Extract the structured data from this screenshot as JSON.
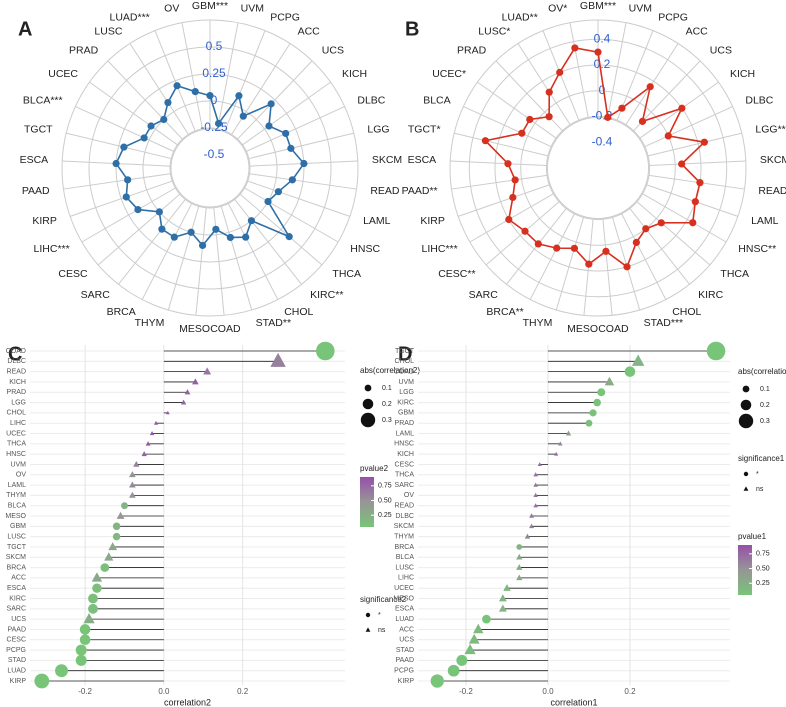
{
  "chart_data": [
    {
      "type": "radar",
      "panel": "A",
      "color": "#2f6fa8",
      "tick_color": "#2f5fcd",
      "categories": [
        "GBM***",
        "UVM",
        "PCPG",
        "ACC",
        "UCS",
        "KICH",
        "DLBC",
        "LGG",
        "SKCM",
        "READ",
        "LAML",
        "HNSC",
        "THCA",
        "KIRC**",
        "CHOL",
        "STAD**",
        "COAD",
        "MESO",
        "THYM",
        "BRCA",
        "SARC",
        "CESC",
        "LIHC***",
        "KIRP",
        "PAAD",
        "ESCA",
        "TGCT",
        "BLCA***",
        "UCEC",
        "PRAD",
        "LUSC",
        "LUAD***",
        "OV"
      ],
      "values": [
        0.05,
        -0.2,
        0.1,
        -0.05,
        0.2,
        0.05,
        0.15,
        0.15,
        0.25,
        0.15,
        0.05,
        0,
        0.35,
        0,
        0.1,
        0.05,
        -0.05,
        0.1,
        0,
        0.1,
        0.1,
        0,
        0.15,
        0.2,
        0.15,
        0.25,
        0.2,
        0.05,
        0.05,
        0,
        0.1,
        0.2,
        0.1
      ],
      "ylim": [
        -0.5,
        0.75
      ],
      "yticks": [
        -0.5,
        -0.25,
        0,
        0.25,
        0.5
      ]
    },
    {
      "type": "radar",
      "panel": "B",
      "color": "#d7301f",
      "tick_color": "#2f5fcd",
      "categories": [
        "GBM***",
        "UVM",
        "PCPG",
        "ACC",
        "UCS",
        "KICH",
        "DLBC",
        "LGG***",
        "SKCM**",
        "READ",
        "LAML",
        "HNSC**",
        "THCA",
        "KIRC",
        "CHOL",
        "STAD***",
        "COAD",
        "MESO",
        "THYM",
        "BRCA**",
        "SARC",
        "CESC**",
        "LIHC***",
        "KIRP",
        "PAAD**",
        "ESCA",
        "TGCT*",
        "BLCA",
        "UCEC*",
        "PRAD",
        "LUSC*",
        "LUAD**",
        "OV*"
      ],
      "values": [
        0.3,
        -0.2,
        -0.1,
        0.15,
        -0.1,
        0.2,
        0,
        0.25,
        0.05,
        0.2,
        0.2,
        0.25,
        0.05,
        0,
        0.05,
        0.2,
        0.05,
        0.15,
        0.05,
        0.1,
        0.15,
        0.15,
        0.2,
        0.1,
        0.05,
        0.1,
        0.3,
        0.05,
        0.05,
        -0.05,
        0.1,
        0.2,
        0.35
      ],
      "ylim": [
        -0.5,
        0.55
      ],
      "yticks": [
        -0.4,
        -0.2,
        0,
        0.2,
        0.4
      ]
    },
    {
      "type": "lollipop",
      "panel": "C",
      "xlabel": "correlation2",
      "categories": [
        "COAD",
        "DLBC",
        "READ",
        "KICH",
        "PRAD",
        "LGG",
        "CHOL",
        "LIHC",
        "UCEC",
        "THCA",
        "HNSC",
        "UVM",
        "OV",
        "LAML",
        "THYM",
        "BLCA",
        "MESO",
        "GBM",
        "LUSC",
        "TGCT",
        "SKCM",
        "BRCA",
        "ACC",
        "ESCA",
        "KIRC",
        "SARC",
        "UCS",
        "PAAD",
        "CESC",
        "PCPG",
        "STAD",
        "LUAD",
        "KIRP"
      ],
      "values": [
        0.41,
        0.29,
        0.11,
        0.08,
        0.06,
        0.05,
        0.01,
        -0.02,
        -0.03,
        -0.04,
        -0.05,
        -0.07,
        -0.08,
        -0.08,
        -0.08,
        -0.1,
        -0.11,
        -0.12,
        -0.12,
        -0.13,
        -0.14,
        -0.15,
        -0.17,
        -0.17,
        -0.18,
        -0.18,
        -0.19,
        -0.2,
        -0.2,
        -0.21,
        -0.21,
        -0.26,
        -0.31
      ],
      "pvalues": [
        0.05,
        0.6,
        0.65,
        0.8,
        0.8,
        0.8,
        0.9,
        0.85,
        0.85,
        0.85,
        0.8,
        0.6,
        0.5,
        0.55,
        0.5,
        0.2,
        0.45,
        0.2,
        0.15,
        0.3,
        0.3,
        0.1,
        0.3,
        0.1,
        0.1,
        0.1,
        0.25,
        0.05,
        0.05,
        0.05,
        0.05,
        0.05,
        0.05
      ],
      "significance": [
        "*",
        "ns",
        "ns",
        "ns",
        "ns",
        "ns",
        "ns",
        "ns",
        "ns",
        "ns",
        "ns",
        "ns",
        "ns",
        "ns",
        "ns",
        "*",
        "ns",
        "*",
        "*",
        "ns",
        "ns",
        "*",
        "ns",
        "*",
        "*",
        "*",
        "ns",
        "*",
        "*",
        "*",
        "*",
        "*",
        "*"
      ],
      "xlim": [
        -0.34,
        0.46
      ],
      "xticks": [
        -0.2,
        {
          "value": 0,
          "label": "0.0"
        },
        0.2
      ],
      "size_legend": {
        "title": "abs(correlation2)",
        "values": [
          0.1,
          0.2,
          0.3
        ]
      },
      "color_legend": {
        "title": "pvalue2",
        "clim": [
          0.05,
          0.9
        ],
        "ticks": [
          0.25,
          {
            "value": 0.5,
            "label": "0.50"
          },
          0.75
        ]
      },
      "shape_legend": {
        "title": "significance2",
        "labels": [
          "*",
          "ns"
        ]
      }
    },
    {
      "type": "lollipop",
      "panel": "D",
      "xlabel": "correlation1",
      "categories": [
        "TGCT",
        "CHOL",
        "COAD",
        "UVM",
        "LGG",
        "KIRC",
        "GBM",
        "PRAD",
        "LAML",
        "HNSC",
        "KICH",
        "CESC",
        "THCA",
        "SARC",
        "OV",
        "READ",
        "DLBC",
        "SKCM",
        "THYM",
        "BRCA",
        "BLCA",
        "LUSC",
        "LIHC",
        "UCEC",
        "MESO",
        "ESCA",
        "LUAD",
        "ACC",
        "UCS",
        "STAD",
        "PAAD",
        "PCPG",
        "KIRP"
      ],
      "values": [
        0.41,
        0.22,
        0.2,
        0.15,
        0.13,
        0.12,
        0.11,
        0.1,
        0.05,
        0.03,
        0.02,
        -0.02,
        -0.03,
        -0.03,
        -0.03,
        -0.03,
        -0.04,
        -0.04,
        -0.05,
        -0.07,
        -0.07,
        -0.07,
        -0.07,
        -0.1,
        -0.11,
        -0.11,
        -0.15,
        -0.17,
        -0.18,
        -0.19,
        -0.21,
        -0.23,
        -0.27
      ],
      "pvalues": [
        0.01,
        0.2,
        0.02,
        0.25,
        0.05,
        0.06,
        0.08,
        0.1,
        0.45,
        0.6,
        0.75,
        0.75,
        0.7,
        0.7,
        0.7,
        0.7,
        0.65,
        0.65,
        0.6,
        0.2,
        0.3,
        0.3,
        0.3,
        0.2,
        0.2,
        0.2,
        0.05,
        0.15,
        0.15,
        0.12,
        0.03,
        0.02,
        0.01
      ],
      "significance": [
        "*",
        "ns",
        "*",
        "ns",
        "*",
        "*",
        "*",
        "*",
        "ns",
        "ns",
        "ns",
        "ns",
        "ns",
        "ns",
        "ns",
        "ns",
        "ns",
        "ns",
        "ns",
        "*",
        "ns",
        "ns",
        "ns",
        "ns",
        "ns",
        "ns",
        "*",
        "ns",
        "ns",
        "ns",
        "*",
        "*",
        "*"
      ],
      "xlim": [
        -0.317,
        0.444
      ],
      "xticks": [
        -0.2,
        {
          "value": 0,
          "label": "0.0"
        },
        0.2
      ],
      "size_legend": {
        "title": "abs(correlation1)",
        "values": [
          0.1,
          0.2,
          0.3
        ]
      },
      "color_legend": {
        "title": "pvalue1",
        "clim": [
          0.05,
          0.9
        ],
        "ticks": [
          0.25,
          {
            "value": 0.5,
            "label": "0.50"
          },
          0.75
        ]
      },
      "shape_legend": {
        "title": "significance1",
        "labels": [
          "*",
          "ns"
        ]
      }
    }
  ]
}
